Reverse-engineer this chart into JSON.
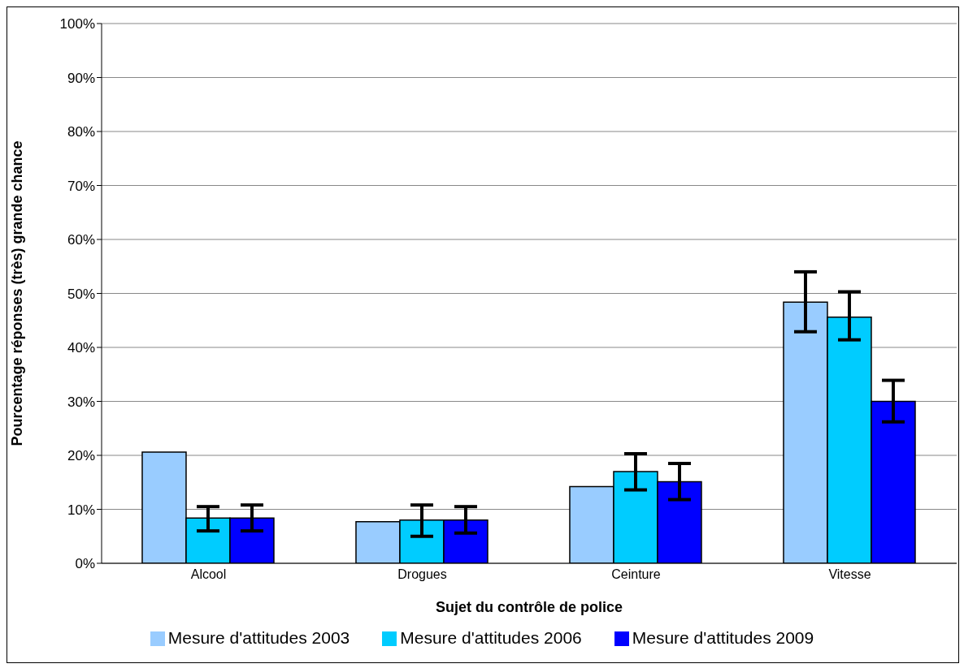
{
  "chart_data": {
    "type": "bar",
    "xlabel": "Sujet du contrôle de police",
    "ylabel": "Pourcentage réponses (très) grande chance",
    "categories": [
      "Alcool",
      "Drogues",
      "Ceinture",
      "Vitesse"
    ],
    "series": [
      {
        "name": "Mesure d'attitudes 2003",
        "color": "#99ccff",
        "values": [
          20.6,
          7.7,
          14.2,
          48.4
        ],
        "errors": [
          null,
          null,
          null,
          [
            42.9,
            54.0
          ]
        ]
      },
      {
        "name": "Mesure d'attitudes 2006",
        "color": "#00ccff",
        "values": [
          8.4,
          8.0,
          17.0,
          45.6
        ],
        "errors": [
          [
            6.0,
            10.5
          ],
          [
            5.0,
            10.8
          ],
          [
            13.6,
            20.3
          ],
          [
            41.4,
            50.3
          ]
        ]
      },
      {
        "name": "Mesure d'attitudes 2009",
        "color": "#0000ff",
        "values": [
          8.4,
          8.0,
          15.1,
          30.0
        ],
        "errors": [
          [
            6.0,
            10.8
          ],
          [
            5.6,
            10.5
          ],
          [
            11.8,
            18.5
          ],
          [
            26.2,
            33.9
          ]
        ]
      }
    ],
    "ylim": [
      0,
      100
    ],
    "yticks": [
      {
        "value": 0,
        "label": "0%"
      },
      {
        "value": 10,
        "label": "10%"
      },
      {
        "value": 20,
        "label": "20%"
      },
      {
        "value": 30,
        "label": "30%"
      },
      {
        "value": 40,
        "label": "40%"
      },
      {
        "value": 50,
        "label": "50%"
      },
      {
        "value": 60,
        "label": "60%"
      },
      {
        "value": 70,
        "label": "70%"
      },
      {
        "value": 80,
        "label": "80%"
      },
      {
        "value": 90,
        "label": "90%"
      },
      {
        "value": 100,
        "label": "100%"
      }
    ],
    "grid": "y",
    "legend": "bottom"
  }
}
